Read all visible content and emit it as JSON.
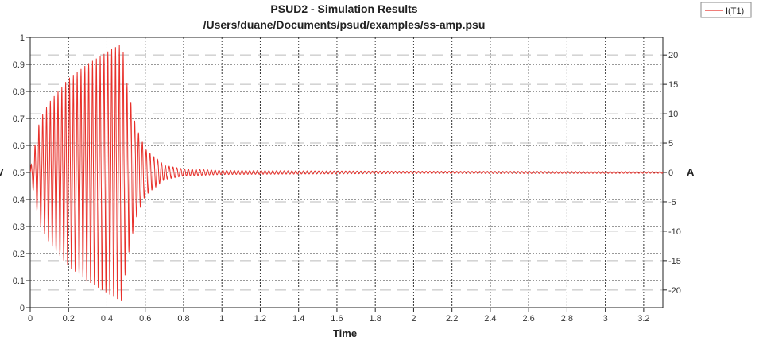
{
  "chart_data": {
    "type": "line",
    "title": "PSUD2 - Simulation Results",
    "subtitle": "/Users/duane/Documents/psud/examples/ss-amp.psu",
    "xlabel": "Time",
    "ylabel_left": "V",
    "ylabel_right": "A",
    "xlim": [
      0,
      3.3
    ],
    "ylim_left": [
      0,
      1
    ],
    "ylim_right": [
      -23,
      23
    ],
    "x_ticks": [
      "0",
      "0.2",
      "0.4",
      "0.6",
      "0.8",
      "1",
      "1.2",
      "1.4",
      "1.6",
      "1.8",
      "2",
      "2.2",
      "2.4",
      "2.6",
      "2.8",
      "3",
      "3.2"
    ],
    "y_ticks_left": [
      "0",
      "0.1",
      "0.2",
      "0.3",
      "0.4",
      "0.5",
      "0.6",
      "0.7",
      "0.8",
      "0.9",
      "1"
    ],
    "y_ticks_right": [
      "-20",
      "-15",
      "-10",
      "-5",
      "0",
      "5",
      "10",
      "15",
      "20"
    ],
    "grid": true,
    "legend_position": "top-right",
    "series": [
      {
        "name": "I(T1)",
        "axis": "right",
        "color": "#e8302a",
        "envelope": [
          {
            "x": 0.0,
            "amp": 0.5
          },
          {
            "x": 0.05,
            "amp": 9
          },
          {
            "x": 0.1,
            "amp": 12
          },
          {
            "x": 0.2,
            "amp": 16
          },
          {
            "x": 0.3,
            "amp": 18.5
          },
          {
            "x": 0.4,
            "amp": 20.5
          },
          {
            "x": 0.48,
            "amp": 22
          },
          {
            "x": 0.5,
            "amp": 16
          },
          {
            "x": 0.55,
            "amp": 8
          },
          {
            "x": 0.6,
            "amp": 4
          },
          {
            "x": 0.7,
            "amp": 1.2
          },
          {
            "x": 0.8,
            "amp": 0.6
          },
          {
            "x": 1.0,
            "amp": 0.35
          },
          {
            "x": 1.5,
            "amp": 0.25
          },
          {
            "x": 2.0,
            "amp": 0.2
          },
          {
            "x": 3.3,
            "amp": 0.15
          }
        ]
      }
    ]
  },
  "legend": {
    "label": "I(T1)"
  }
}
